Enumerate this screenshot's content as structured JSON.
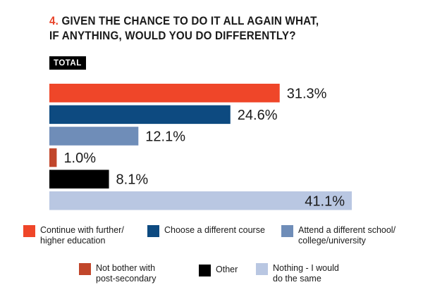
{
  "title": {
    "number": "4.",
    "text": "GIVEN THE CHANCE TO DO IT ALL AGAIN WHAT, IF ANYTHING, WOULD YOU DO DIFFERENTLY?"
  },
  "badge": "TOTAL",
  "chart_data": {
    "type": "bar",
    "orientation": "horizontal",
    "categories": [
      "Continue with further/ higher education",
      "Choose a different course",
      "Attend a different school/ college/university",
      "Not bother with post-secondary",
      "Other",
      "Nothing - I would do the same"
    ],
    "values": [
      31.3,
      24.6,
      12.1,
      1.0,
      8.1,
      41.1
    ],
    "labels": [
      "31.3%",
      "24.6%",
      "12.1%",
      "1.0%",
      "8.1%",
      "41.1%"
    ],
    "colors": [
      "#ef4629",
      "#0d4a80",
      "#6f8db8",
      "#c1462b",
      "#000000",
      "#b9c7e2"
    ],
    "legend_position": "bottom",
    "grid": false,
    "xlim": [
      0,
      41.1
    ]
  },
  "legend": [
    {
      "line1": "Continue with further/",
      "line2": "higher education",
      "color": "#ef4629"
    },
    {
      "line1": "Choose a different course",
      "line2": "",
      "color": "#0d4a80"
    },
    {
      "line1": "Attend a different school/",
      "line2": "college/university",
      "color": "#6f8db8"
    },
    {
      "line1": "Not bother with",
      "line2": "post-secondary",
      "color": "#c1462b"
    },
    {
      "line1": "Other",
      "line2": "",
      "color": "#000000"
    },
    {
      "line1": "Nothing - I would",
      "line2": "do the same",
      "color": "#b9c7e2"
    }
  ]
}
